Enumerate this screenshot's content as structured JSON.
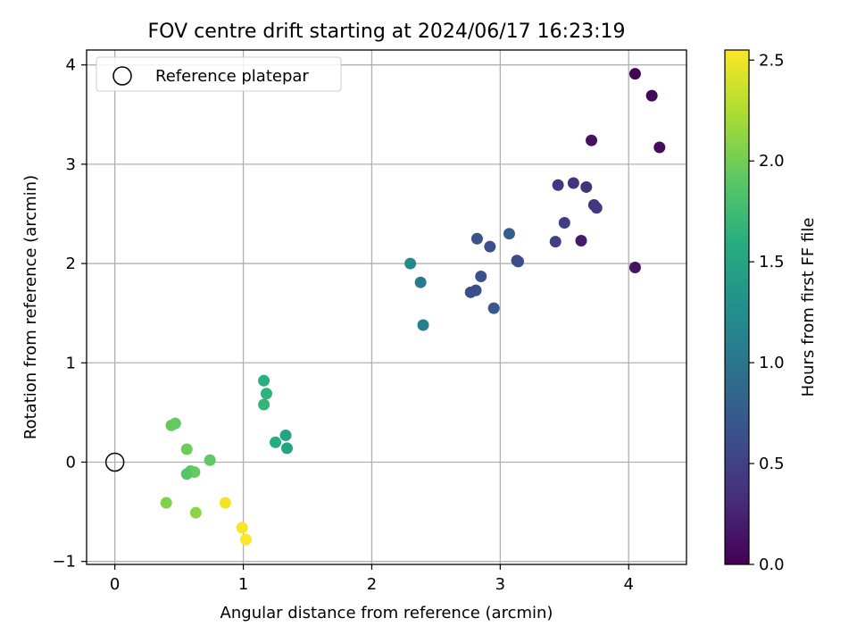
{
  "chart_data": {
    "type": "scatter",
    "title": "FOV centre drift starting at 2024/06/17 16:23:19",
    "xlabel": "Angular distance from reference (arcmin)",
    "ylabel": "Rotation from reference (arcmin)",
    "xlim": [
      -0.22,
      4.45
    ],
    "ylim": [
      -1.03,
      4.15
    ],
    "xticks": [
      0,
      1,
      2,
      3,
      4
    ],
    "yticks": [
      -1,
      0,
      1,
      2,
      3,
      4
    ],
    "grid": true,
    "legend": {
      "placement": "top-left",
      "entries": [
        "Reference platepar"
      ]
    },
    "reference_point": {
      "x": 0,
      "y": 0,
      "label": "Reference platepar"
    },
    "colorbar": {
      "label": "Hours from first FF file",
      "colormap": "viridis",
      "range": [
        0,
        2.55
      ],
      "ticks": [
        0.0,
        0.5,
        1.0,
        1.5,
        2.0,
        2.5
      ],
      "tick_labels": [
        "0.0",
        "0.5",
        "1.0",
        "1.5",
        "2.0",
        "2.5"
      ]
    },
    "points": [
      {
        "x": 4.05,
        "y": 3.91,
        "c": 0.02
      },
      {
        "x": 4.18,
        "y": 3.69,
        "c": 0.05
      },
      {
        "x": 4.24,
        "y": 3.17,
        "c": 0.08
      },
      {
        "x": 3.71,
        "y": 3.24,
        "c": 0.12
      },
      {
        "x": 4.05,
        "y": 1.96,
        "c": 0.14
      },
      {
        "x": 3.63,
        "y": 2.23,
        "c": 0.18
      },
      {
        "x": 3.57,
        "y": 2.81,
        "c": 0.38
      },
      {
        "x": 3.67,
        "y": 2.77,
        "c": 0.36
      },
      {
        "x": 3.45,
        "y": 2.79,
        "c": 0.42
      },
      {
        "x": 3.73,
        "y": 2.59,
        "c": 0.4
      },
      {
        "x": 3.75,
        "y": 2.56,
        "c": 0.42
      },
      {
        "x": 3.5,
        "y": 2.41,
        "c": 0.48
      },
      {
        "x": 3.43,
        "y": 2.22,
        "c": 0.5
      },
      {
        "x": 3.13,
        "y": 2.03,
        "c": 0.58
      },
      {
        "x": 3.14,
        "y": 2.02,
        "c": 0.6
      },
      {
        "x": 3.07,
        "y": 2.3,
        "c": 0.78
      },
      {
        "x": 2.92,
        "y": 2.17,
        "c": 0.62
      },
      {
        "x": 2.82,
        "y": 2.25,
        "c": 0.66
      },
      {
        "x": 2.85,
        "y": 1.87,
        "c": 0.64
      },
      {
        "x": 2.81,
        "y": 1.73,
        "c": 0.62
      },
      {
        "x": 2.77,
        "y": 1.71,
        "c": 0.6
      },
      {
        "x": 2.95,
        "y": 1.55,
        "c": 0.7
      },
      {
        "x": 2.3,
        "y": 2.0,
        "c": 1.2
      },
      {
        "x": 2.38,
        "y": 1.81,
        "c": 1.05
      },
      {
        "x": 2.4,
        "y": 1.38,
        "c": 1.1
      },
      {
        "x": 1.16,
        "y": 0.82,
        "c": 1.62
      },
      {
        "x": 1.18,
        "y": 0.69,
        "c": 1.65
      },
      {
        "x": 1.16,
        "y": 0.58,
        "c": 1.68
      },
      {
        "x": 1.33,
        "y": 0.27,
        "c": 1.48
      },
      {
        "x": 1.25,
        "y": 0.2,
        "c": 1.58
      },
      {
        "x": 1.34,
        "y": 0.14,
        "c": 1.5
      },
      {
        "x": 0.47,
        "y": 0.39,
        "c": 1.92
      },
      {
        "x": 0.44,
        "y": 0.37,
        "c": 1.95
      },
      {
        "x": 0.56,
        "y": 0.13,
        "c": 1.98
      },
      {
        "x": 0.74,
        "y": 0.02,
        "c": 1.92
      },
      {
        "x": 0.59,
        "y": -0.09,
        "c": 1.9
      },
      {
        "x": 0.62,
        "y": -0.1,
        "c": 1.94
      },
      {
        "x": 0.56,
        "y": -0.12,
        "c": 1.88
      },
      {
        "x": 0.4,
        "y": -0.41,
        "c": 2.05
      },
      {
        "x": 0.63,
        "y": -0.51,
        "c": 2.1
      },
      {
        "x": 0.86,
        "y": -0.41,
        "c": 2.5
      },
      {
        "x": 0.99,
        "y": -0.66,
        "c": 2.52
      },
      {
        "x": 1.02,
        "y": -0.78,
        "c": 2.55
      }
    ]
  }
}
